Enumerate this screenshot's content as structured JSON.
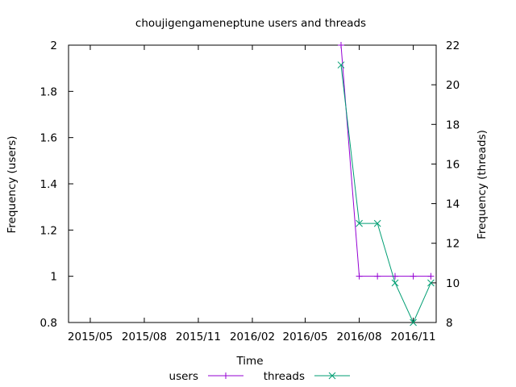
{
  "chart_data": {
    "type": "line",
    "title": "choujigengameneptune users and threads",
    "xlabel": "Time",
    "ylabel_left": "Frequency (users)",
    "ylabel_right": "Frequency (threads)",
    "x_tick_labels": [
      "2015/05",
      "2015/08",
      "2015/11",
      "2016/02",
      "2016/05",
      "2016/08",
      "2016/11"
    ],
    "x_tick_dates": [
      "2015-05-01",
      "2015-08-01",
      "2015-11-01",
      "2016-02-01",
      "2016-05-01",
      "2016-08-01",
      "2016-11-01"
    ],
    "xlim": [
      "2015-03-25",
      "2016-12-10"
    ],
    "y_left_ticks": [
      "0.8",
      "1",
      "1.2",
      "1.4",
      "1.6",
      "1.8",
      "2"
    ],
    "ylim_left": [
      0.8,
      2
    ],
    "y_right_ticks": [
      "8",
      "10",
      "12",
      "14",
      "16",
      "18",
      "20",
      "22"
    ],
    "ylim_right": [
      8,
      22
    ],
    "grid": false,
    "legend_position": "bottom-center",
    "series": [
      {
        "name": "users",
        "axis": "left",
        "color": "#9400d3",
        "marker": "plus",
        "points": [
          {
            "x": "2016-07-01",
            "y": 2
          },
          {
            "x": "2016-08-01",
            "y": 1
          },
          {
            "x": "2016-09-01",
            "y": 1
          },
          {
            "x": "2016-10-01",
            "y": 1
          },
          {
            "x": "2016-11-01",
            "y": 1
          },
          {
            "x": "2016-12-01",
            "y": 1
          }
        ]
      },
      {
        "name": "threads",
        "axis": "right",
        "color": "#009e73",
        "marker": "cross",
        "points": [
          {
            "x": "2016-07-01",
            "y": 21
          },
          {
            "x": "2016-08-01",
            "y": 13
          },
          {
            "x": "2016-09-01",
            "y": 13
          },
          {
            "x": "2016-10-01",
            "y": 10
          },
          {
            "x": "2016-11-01",
            "y": 8
          },
          {
            "x": "2016-12-01",
            "y": 10
          }
        ]
      }
    ]
  }
}
